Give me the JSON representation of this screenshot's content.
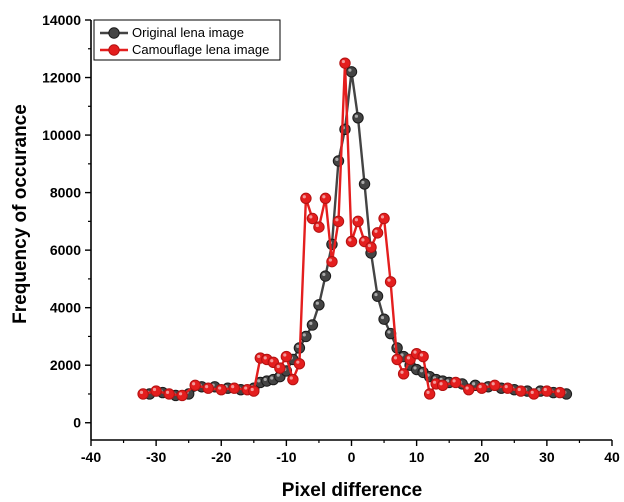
{
  "chart_data": {
    "type": "line",
    "title": "",
    "xlabel": "Pixel difference",
    "ylabel": "Frequency of occurance",
    "xlim": [
      -40,
      40
    ],
    "ylim": [
      -600,
      14000
    ],
    "xticks": [
      -40,
      -30,
      -20,
      -10,
      0,
      10,
      20,
      30,
      40
    ],
    "yticks": [
      0,
      2000,
      4000,
      6000,
      8000,
      10000,
      12000,
      14000
    ],
    "grid": false,
    "legend_position": "top-left",
    "series": [
      {
        "name": "Original lena image",
        "color": "#444444",
        "x": [
          -31,
          -29,
          -27,
          -25,
          -23,
          -21,
          -19,
          -17,
          -15,
          -14,
          -13,
          -12,
          -11,
          -10,
          -9,
          -8,
          -7,
          -6,
          -5,
          -4,
          -3,
          -2,
          -1,
          0,
          1,
          2,
          3,
          4,
          5,
          6,
          7,
          8,
          9,
          10,
          11,
          12,
          13,
          14,
          15,
          17,
          19,
          21,
          23,
          25,
          27,
          29,
          31,
          33
        ],
        "y": [
          1000,
          1050,
          950,
          1000,
          1250,
          1250,
          1200,
          1150,
          1200,
          1400,
          1450,
          1500,
          1600,
          1800,
          2200,
          2600,
          3000,
          3400,
          4100,
          5100,
          6200,
          9100,
          10200,
          12200,
          10600,
          8300,
          5900,
          4400,
          3600,
          3100,
          2600,
          2300,
          2000,
          1850,
          1750,
          1600,
          1500,
          1450,
          1400,
          1350,
          1300,
          1250,
          1200,
          1150,
          1100,
          1100,
          1050,
          1000
        ]
      },
      {
        "name": "Camouflage lena image",
        "color": "#e41e1e",
        "x": [
          -32,
          -30,
          -28,
          -26,
          -24,
          -22,
          -20,
          -18,
          -16,
          -15,
          -14,
          -13,
          -12,
          -11,
          -10,
          -9,
          -8,
          -7,
          -6,
          -5,
          -4,
          -3,
          -2,
          -1,
          0,
          1,
          2,
          3,
          4,
          5,
          6,
          7,
          8,
          9,
          10,
          11,
          12,
          13,
          14,
          16,
          18,
          20,
          22,
          24,
          26,
          28,
          30,
          32
        ],
        "y": [
          1000,
          1100,
          1000,
          950,
          1300,
          1200,
          1150,
          1200,
          1150,
          1100,
          2250,
          2200,
          2100,
          1900,
          2300,
          1500,
          2050,
          7800,
          7100,
          6800,
          7800,
          5600,
          7000,
          12500,
          6300,
          7000,
          6300,
          6100,
          6600,
          7100,
          4900,
          2200,
          1700,
          2200,
          2400,
          2300,
          1000,
          1350,
          1300,
          1400,
          1150,
          1200,
          1300,
          1200,
          1100,
          1000,
          1100,
          1050
        ]
      }
    ]
  }
}
